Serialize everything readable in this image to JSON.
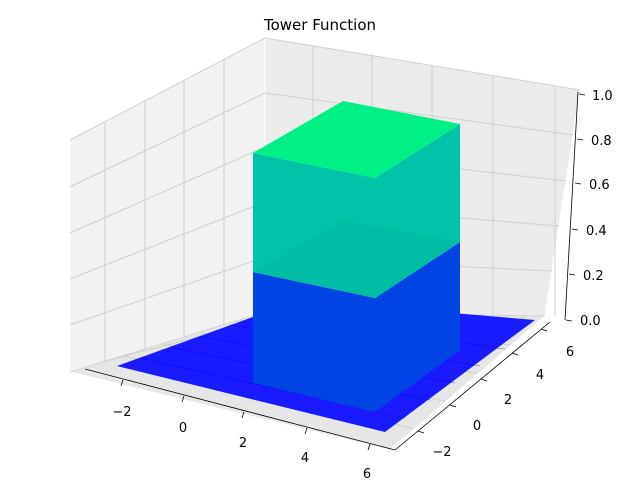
{
  "chart_data": {
    "type": "surface",
    "title": "Tower Function",
    "xlabel": "",
    "ylabel": "",
    "zlabel": "",
    "xlim": [
      -3,
      6
    ],
    "ylim": [
      -3,
      6
    ],
    "zlim": [
      0,
      1
    ],
    "x_ticks": [
      "−2",
      "0",
      "2",
      "4",
      "6"
    ],
    "y_ticks": [
      "−2",
      "0",
      "2",
      "4",
      "6"
    ],
    "z_ticks": [
      "0.0",
      "0.2",
      "0.4",
      "0.6",
      "0.8",
      "1.0"
    ],
    "grid": true,
    "colormap": "winter",
    "surface": {
      "description_values": {
        "base_z": 0,
        "tower_z": 1,
        "tower_x_range": [
          0,
          3
        ],
        "tower_y_range": [
          0,
          3
        ]
      }
    },
    "colors": {
      "low": "#0000ff",
      "mid_low": "#0040e0",
      "mid_high": "#00c0a0",
      "high": "#00ff80",
      "pane": "#f2f2f2",
      "pane_dark": "#e6e6e6",
      "grid": "#d0d0d0"
    }
  }
}
